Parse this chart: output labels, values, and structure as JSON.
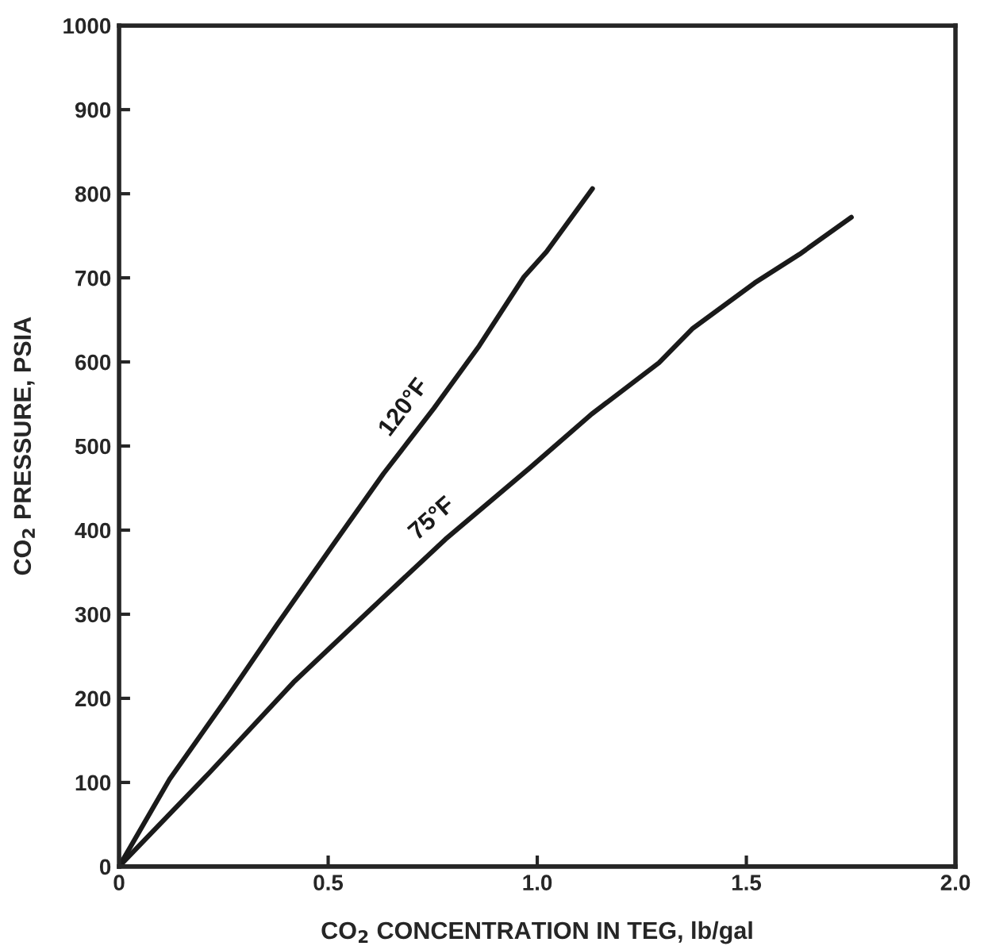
{
  "chart_data": {
    "type": "line",
    "xlabel": "CO$_{2}$ CONCENTRATION IN TEG, lb/gal",
    "ylabel": "CO$_{2}$ PRESSURE, PSIA",
    "series": [
      {
        "name": "120°F",
        "color": "#1a1a1a",
        "x": [
          0,
          0.121,
          0.256,
          0.377,
          0.511,
          0.632,
          0.753,
          0.861,
          0.968,
          1.022,
          1.132
        ],
        "values": [
          0,
          104,
          199,
          287,
          382,
          467,
          545,
          619,
          701,
          731,
          806
        ]
      },
      {
        "name": "75°F",
        "color": "#1a1a1a",
        "x": [
          0,
          0.215,
          0.417,
          0.619,
          0.78,
          0.982,
          1.13,
          1.291,
          1.372,
          1.52,
          1.627,
          1.751
        ],
        "values": [
          0,
          111,
          219,
          314,
          389,
          474,
          538,
          599,
          640,
          694,
          728,
          772
        ]
      }
    ],
    "xlim": [
      0,
      2.0
    ],
    "xticks": [
      0,
      0.5,
      {
        "value": 1,
        "label": "1.0"
      },
      1.5,
      {
        "value": 2,
        "label": "2.0"
      }
    ],
    "ylim": [
      0,
      1000
    ],
    "yticks": [
      0,
      100,
      200,
      300,
      400,
      500,
      600,
      700,
      800,
      900,
      1000
    ],
    "grid": false,
    "legend": false,
    "marker": "none",
    "line_style": "solid"
  }
}
